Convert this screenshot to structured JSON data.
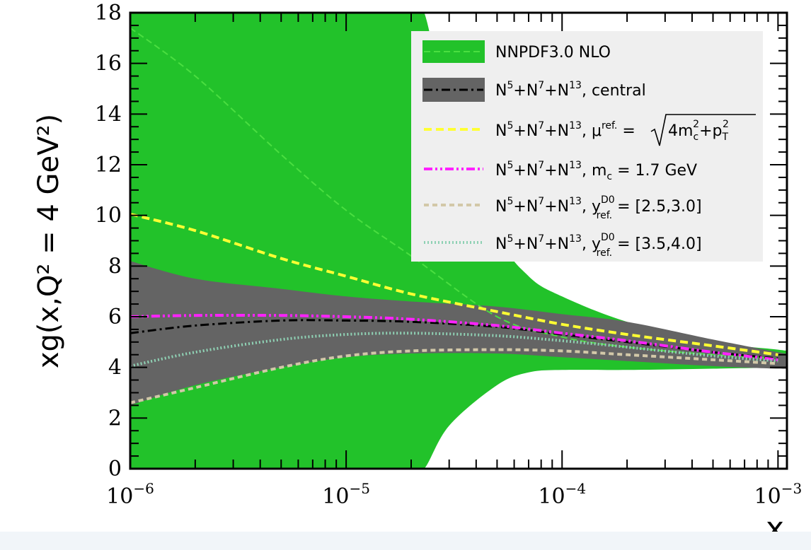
{
  "chart_data": {
    "type": "line",
    "xlabel": "x",
    "ylabel": "xg(x,Q² = 4 GeV²)",
    "xscale": "log",
    "xlim": [
      1e-06,
      0.0011
    ],
    "ylim": [
      0,
      18
    ],
    "x_ticks": [
      {
        "value": 1e-06,
        "base": "10",
        "exp": "−6"
      },
      {
        "value": 1e-05,
        "base": "10",
        "exp": "−5"
      },
      {
        "value": 0.0001,
        "base": "10",
        "exp": "−4"
      },
      {
        "value": 0.001,
        "base": "10",
        "exp": "−3"
      }
    ],
    "y_ticks": [
      "0",
      "2",
      "4",
      "6",
      "8",
      "10",
      "12",
      "14",
      "16",
      "18"
    ],
    "legend_position": "top-right",
    "x": [
      1e-06,
      2e-06,
      5e-06,
      1e-05,
      2e-05,
      5e-05,
      0.0001,
      0.0002,
      0.0005,
      0.001
    ],
    "bands": [
      {
        "legend_ref": "nnpdf",
        "color": "#22c22a",
        "x": [
          1e-06,
          2e-06,
          5e-06,
          1e-05,
          1.5e-05,
          2e-05,
          2.3e-05,
          3e-05,
          5e-05,
          7e-05,
          0.0001,
          0.0002,
          0.0005,
          0.001,
          0.0011
        ],
        "upper": [
          18,
          18,
          18,
          18,
          18,
          18,
          18,
          14,
          9.3,
          7.6,
          6.8,
          5.8,
          5.0,
          4.7,
          4.65
        ],
        "lower": [
          0,
          0,
          0,
          0,
          0,
          0,
          0,
          1.7,
          3.3,
          3.8,
          3.9,
          3.9,
          3.95,
          4.0,
          4.0
        ]
      },
      {
        "legend_ref": "central",
        "color": "#646464",
        "x": [
          1e-06,
          2e-06,
          5e-06,
          1e-05,
          2e-05,
          5e-05,
          0.0001,
          0.0002,
          0.0005,
          0.001,
          0.0011
        ],
        "upper": [
          8.2,
          7.5,
          7.1,
          6.8,
          6.6,
          6.4,
          6.1,
          5.8,
          5.1,
          4.6,
          4.55
        ],
        "lower": [
          2.5,
          3.3,
          4.0,
          4.4,
          4.55,
          4.55,
          4.4,
          4.25,
          4.05,
          3.95,
          3.95
        ]
      }
    ],
    "series": [
      {
        "legend_ref": "nnpdf",
        "color": "#4ade40",
        "dash": "9,5",
        "width": 2,
        "values": [
          17.4,
          15.5,
          12.4,
          10.2,
          8.4,
          6.0,
          5.2,
          4.8,
          4.5,
          4.35
        ]
      },
      {
        "legend_ref": "mu",
        "color": "#ffff33",
        "dash": "11,6",
        "width": 4,
        "values": [
          10.05,
          9.4,
          8.3,
          7.6,
          6.9,
          6.2,
          5.7,
          5.3,
          4.85,
          4.5
        ]
      },
      {
        "legend_ref": "central",
        "color": "#000000",
        "dash": "12,5,3,5",
        "width": 3,
        "values": [
          5.35,
          5.65,
          5.85,
          5.85,
          5.8,
          5.6,
          5.3,
          5.0,
          4.6,
          4.35
        ]
      },
      {
        "legend_ref": "mc",
        "color": "#ff22ff",
        "dash": "12,4,3,4,3,4",
        "width": 4,
        "values": [
          6.0,
          6.05,
          6.05,
          6.0,
          5.9,
          5.65,
          5.35,
          5.05,
          4.6,
          4.3
        ]
      },
      {
        "legend_ref": "y25",
        "color": "#d2c8a8",
        "dash": "7,5",
        "width": 4,
        "values": [
          2.6,
          3.2,
          4.0,
          4.45,
          4.65,
          4.7,
          4.65,
          4.5,
          4.3,
          4.15
        ]
      },
      {
        "legend_ref": "y35",
        "color": "#8fd1b4",
        "dash": "2,3",
        "width": 4,
        "values": [
          4.05,
          4.6,
          5.1,
          5.3,
          5.35,
          5.25,
          5.05,
          4.8,
          4.45,
          4.25
        ]
      }
    ]
  },
  "legend": {
    "nnpdf": {
      "text": "NNPDF3.0 NLO"
    },
    "combo": {
      "n": "N",
      "e5": "5",
      "e7": "7",
      "e13": "13",
      "plus": "+"
    },
    "central": {
      "suffix": ", central"
    },
    "mu": {
      "mu": ", μ",
      "ref": "ref.",
      "eq": " = ",
      "four": "4m",
      "c": "c",
      "two": "2",
      "plus": "+p",
      "T": "T"
    },
    "mc": {
      "m": ", m",
      "c": "c",
      "val": " = 1.7 GeV"
    },
    "y25": {
      "y": ", y",
      "d0": "D0",
      "ref": "ref.",
      "val": " = [2.5,3.0]"
    },
    "y35": {
      "y": ", y",
      "d0": "D0",
      "ref": "ref.",
      "val": " = [3.5,4.0]"
    }
  },
  "colors": {
    "legend_bg": "#efefef",
    "nnpdf_band": "#22c22a",
    "central_band": "#646464"
  }
}
